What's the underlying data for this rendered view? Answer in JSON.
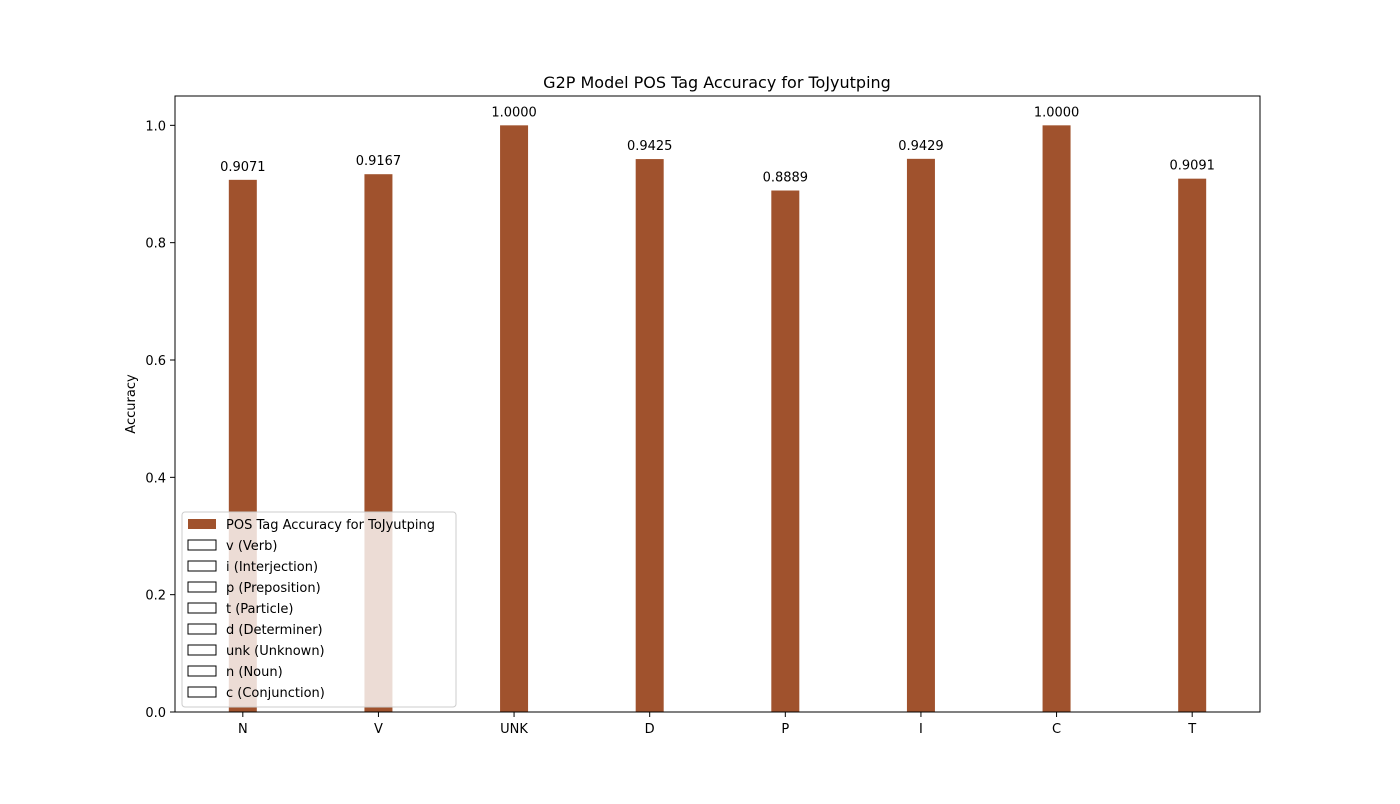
{
  "chart_data": {
    "type": "bar",
    "title": "G2P Model POS Tag Accuracy for ToJyutping",
    "xlabel": "",
    "ylabel": "Accuracy",
    "categories": [
      "N",
      "V",
      "UNK",
      "D",
      "P",
      "I",
      "C",
      "T"
    ],
    "values": [
      0.9071,
      0.9167,
      1.0,
      0.9425,
      0.8889,
      0.9429,
      1.0,
      0.9091
    ],
    "data_labels": [
      "0.9071",
      "0.9167",
      "1.0000",
      "0.9425",
      "0.8889",
      "0.9429",
      "1.0000",
      "0.9091"
    ],
    "ylim": [
      0,
      1.05
    ],
    "yticks": [
      "0.0",
      "0.2",
      "0.4",
      "0.6",
      "0.8",
      "1.0"
    ],
    "ytick_values": [
      0,
      0.2,
      0.4,
      0.6,
      0.8,
      1.0
    ],
    "grid": false,
    "bar_color": "#a0522d",
    "legend": {
      "placement": "lower-left",
      "entries": [
        {
          "label": "POS Tag Accuracy for ToJyutping",
          "filled": true
        },
        {
          "label": "v (Verb)",
          "filled": false
        },
        {
          "label": "i (Interjection)",
          "filled": false
        },
        {
          "label": "p (Preposition)",
          "filled": false
        },
        {
          "label": "t (Particle)",
          "filled": false
        },
        {
          "label": "d (Determiner)",
          "filled": false
        },
        {
          "label": "unk (Unknown)",
          "filled": false
        },
        {
          "label": "n (Noun)",
          "filled": false
        },
        {
          "label": "c (Conjunction)",
          "filled": false
        }
      ]
    }
  }
}
